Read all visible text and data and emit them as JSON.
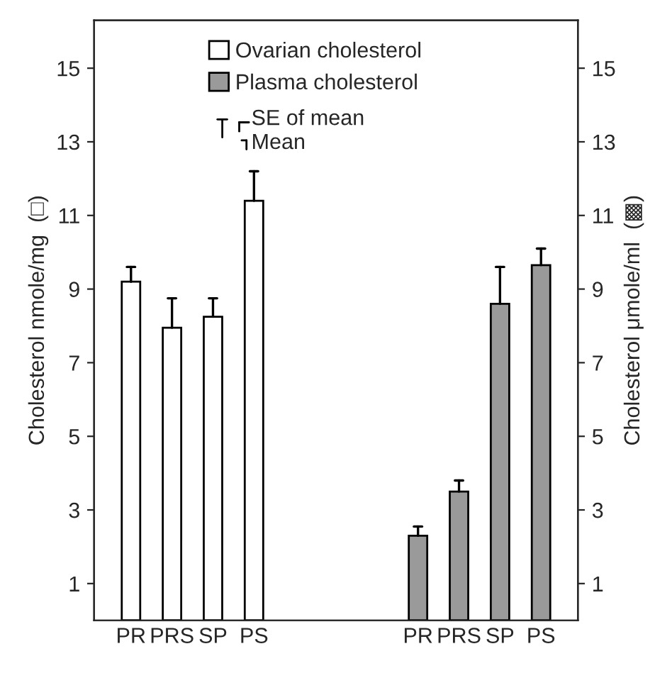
{
  "chart_data": {
    "type": "bar",
    "categories": [
      "PR",
      "PRS",
      "SP",
      "PS",
      null,
      null,
      null,
      "PR",
      "PRS",
      "SP",
      "PS"
    ],
    "series": [
      {
        "name": "Ovarian cholesterol",
        "color": "#ffffff",
        "values": [
          9.2,
          7.95,
          8.25,
          11.4,
          null,
          null,
          null,
          null,
          null,
          null,
          null
        ],
        "errors": [
          [
            9.2,
            9.6
          ],
          [
            7.95,
            8.75
          ],
          [
            8.25,
            8.75
          ],
          [
            11.4,
            12.2
          ],
          null,
          null,
          null,
          null,
          null,
          null,
          null
        ]
      },
      {
        "name": "Plasma cholesterol",
        "color": "#9a9a9a",
        "axis": "y2",
        "values": [
          null,
          null,
          null,
          null,
          null,
          null,
          null,
          2.3,
          3.5,
          8.6,
          9.65
        ],
        "errors": [
          null,
          null,
          null,
          null,
          null,
          null,
          null,
          [
            2.3,
            2.55
          ],
          [
            3.5,
            3.8
          ],
          [
            8.6,
            9.6
          ],
          [
            9.65,
            10.1
          ]
        ]
      }
    ],
    "ylabel": "Cholesterol nmole/mg  (□)",
    "y2label": "Cholesterol μmole/ml  (▩)",
    "ylim": [
      0,
      16.3
    ],
    "yticks": [
      1,
      3,
      5,
      7,
      9,
      11,
      13,
      15
    ],
    "y2lim": [
      0,
      16.3
    ],
    "y2ticks": [
      1,
      3,
      5,
      7,
      9,
      11,
      13,
      15
    ],
    "annotations": [
      "SE of mean",
      "Mean"
    ],
    "legend": "top left",
    "grid": false
  }
}
